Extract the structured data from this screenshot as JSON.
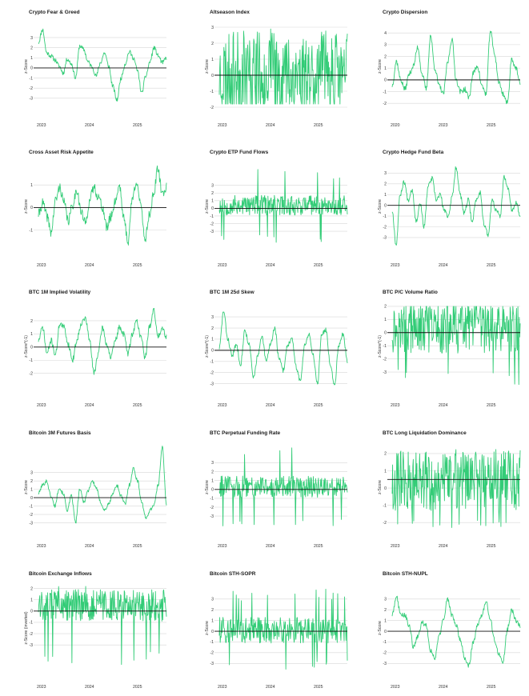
{
  "colors": {
    "line": "#33cc77",
    "zero": "#111111",
    "grid": "#d7d7d7",
    "text": "#333333"
  },
  "chart_data": [
    {
      "type": "line",
      "title": "Crypto Fear & Greed",
      "ylabel": "z-Score",
      "yticks": [
        -3,
        -2,
        -1,
        0,
        1,
        2,
        3
      ],
      "ylim": [
        -4.2,
        4.5
      ],
      "xlabels": [
        "2023",
        "2024",
        "2025"
      ],
      "seed": 11,
      "style": "trend",
      "anchors": [
        2.5,
        3.8,
        1.5,
        1.2,
        0.8,
        0.2,
        -0.5,
        0.9,
        0.4,
        -1.0,
        2.2,
        1.8,
        0.6,
        0.1,
        -0.8,
        0.5,
        1.5,
        0.2,
        -1.8,
        -3.2,
        -1.0,
        0.4,
        1.6,
        1.0,
        -0.3,
        -2.5,
        -0.8,
        0.6,
        2.0,
        1.2,
        0.5,
        1.0
      ]
    },
    {
      "type": "line",
      "title": "Altseason Index",
      "ylabel": "z-Score",
      "yticks": [
        -2,
        -1,
        0,
        1,
        2,
        3
      ],
      "ylim": [
        -2.2,
        3.3
      ],
      "xlabels": [
        "2023",
        "2024",
        "2025"
      ],
      "seed": 23,
      "style": "spiky",
      "base": 0.1,
      "amp": 2.6,
      "lo": -1.8,
      "hi": 2.9
    },
    {
      "type": "line",
      "title": "Crypto Dispersion",
      "ylabel": "z-Score",
      "yticks": [
        -2,
        -1,
        0,
        1,
        2,
        3,
        4
      ],
      "ylim": [
        -2.6,
        4.9
      ],
      "xlabels": [
        "2020",
        "2023",
        "2025"
      ],
      "seed": 37,
      "style": "trend",
      "anchors": [
        -0.5,
        1.6,
        0.0,
        -0.8,
        0.5,
        1.2,
        2.8,
        0.5,
        -0.8,
        3.8,
        1.0,
        -0.5,
        -1.2,
        1.5,
        3.5,
        0.0,
        -1.0,
        -0.8,
        -1.5,
        0.6,
        1.2,
        -0.5,
        -1.2,
        4.2,
        2.2,
        -0.2,
        -1.2,
        -2.0,
        1.8,
        1.0,
        -0.4
      ]
    },
    {
      "type": "line",
      "title": "Cross Asset Risk Appetite",
      "ylabel": "z-Score",
      "yticks": [
        -1,
        0,
        1
      ],
      "ylim": [
        -1.9,
        2.0
      ],
      "xlabels": [
        "2023",
        "2024",
        "2025"
      ],
      "seed": 41,
      "style": "trend",
      "anchors": [
        -0.3,
        0.2,
        -0.4,
        -1.1,
        0.3,
        0.9,
        0.2,
        -0.6,
        0.1,
        0.8,
        -0.2,
        -0.7,
        0.3,
        0.9,
        0.5,
        0.0,
        -0.9,
        -0.4,
        0.3,
        1.0,
        -0.5,
        -1.5,
        0.4,
        1.2,
        0.0,
        -1.4,
        -0.3,
        0.6,
        1.7,
        0.6,
        0.9
      ]
    },
    {
      "type": "line",
      "title": "Crypto ETP Fund Flows",
      "ylabel": "z-Score",
      "yticks": [
        -3,
        -2,
        -1,
        0,
        1,
        2,
        3
      ],
      "ylim": [
        -5.5,
        6.0
      ],
      "xlabels": [
        "2023",
        "2024",
        "2025"
      ],
      "seed": 53,
      "style": "spiky",
      "base": 0.4,
      "amp": 1.3,
      "lo": -4.5,
      "hi": 5.2
    },
    {
      "type": "line",
      "title": "Crypto Hedge Fund Beta",
      "ylabel": "z-Score",
      "yticks": [
        -3,
        -2,
        -1,
        0,
        1,
        2,
        3
      ],
      "ylim": [
        -4.2,
        4.0
      ],
      "xlabels": [
        "2023",
        "2024",
        "2025"
      ],
      "seed": 67,
      "style": "trend",
      "anchors": [
        -0.5,
        -3.7,
        1.0,
        2.2,
        0.5,
        1.5,
        -1.5,
        0.2,
        -2.0,
        1.8,
        2.5,
        0.5,
        1.0,
        -0.5,
        -1.0,
        0.8,
        3.6,
        1.0,
        -0.8,
        0.5,
        -1.5,
        0.5,
        1.2,
        -1.8,
        -2.8,
        0.5,
        -0.5,
        -1.0,
        2.6,
        1.5,
        -0.5,
        0.2,
        -1.0
      ]
    },
    {
      "type": "line",
      "title": "BTC 1M Implied Volatility",
      "ylabel": "z-Score*(-1)",
      "yticks": [
        -2,
        -1,
        0,
        1,
        2
      ],
      "ylim": [
        -3.3,
        3.4
      ],
      "xlabels": [
        "2023",
        "2024",
        "2025"
      ],
      "seed": 71,
      "style": "trend",
      "anchors": [
        0.5,
        1.5,
        -0.5,
        0.5,
        -0.6,
        1.8,
        1.5,
        0.2,
        -1.0,
        0.5,
        1.8,
        2.2,
        0.5,
        -2.0,
        -0.5,
        1.5,
        0.2,
        -0.8,
        0.5,
        1.5,
        1.0,
        -0.5,
        1.0,
        2.0,
        0.8,
        -0.8,
        1.5,
        2.8,
        0.8,
        1.5,
        0.8
      ]
    },
    {
      "type": "line",
      "title": "BTC 1M 25d Skew",
      "ylabel": "z-Score*(-1)",
      "yticks": [
        -3,
        -2,
        -1,
        0,
        1,
        2,
        3
      ],
      "ylim": [
        -3.6,
        4.3
      ],
      "xlabels": [
        "2023",
        "2024",
        "2025"
      ],
      "seed": 83,
      "style": "trend",
      "anchors": [
        0.2,
        3.5,
        1.0,
        -0.5,
        0.5,
        -1.2,
        1.8,
        0.5,
        -2.5,
        -0.5,
        1.2,
        -1.0,
        0.6,
        2.0,
        -0.8,
        -1.8,
        0.5,
        1.0,
        -1.5,
        -2.8,
        0.5,
        1.5,
        -0.5,
        -3.0,
        1.5,
        1.8,
        -1.2,
        -3.2,
        0.5,
        1.5,
        -1.0
      ]
    },
    {
      "type": "line",
      "title": "BTC P/C Volume Ratio",
      "ylabel": "z-Score*(-1)",
      "yticks": [
        -3,
        -2,
        -1,
        0,
        1,
        2
      ],
      "ylim": [
        -4.4,
        2.3
      ],
      "xlabels": [
        "2023",
        "2024",
        "2025"
      ],
      "seed": 97,
      "style": "spiky",
      "base": 0.3,
      "amp": 1.9,
      "lo": -4.0,
      "hi": 2.0
    },
    {
      "type": "line",
      "title": "Bitcoin 3M Futures Basis",
      "ylabel": "z-Score",
      "yticks": [
        -3,
        -2,
        -1,
        0,
        1,
        2,
        3
      ],
      "ylim": [
        -4.0,
        6.5
      ],
      "xlabels": [
        "2023",
        "2024",
        "2025"
      ],
      "seed": 101,
      "style": "trend",
      "anchors": [
        0.5,
        1.5,
        2.0,
        0.2,
        -1.0,
        1.2,
        0.5,
        -1.5,
        0.2,
        -3.0,
        1.0,
        -0.5,
        0.8,
        2.0,
        1.2,
        -0.5,
        -1.5,
        -0.8,
        0.5,
        1.5,
        0.2,
        -0.8,
        1.5,
        3.5,
        2.0,
        -0.5,
        -2.5,
        -1.5,
        -0.8,
        1.5,
        6.2,
        -1.0
      ]
    },
    {
      "type": "line",
      "title": "BTC Perpetual Funding Rate",
      "ylabel": "z-Score",
      "yticks": [
        -3,
        -2,
        -1,
        0,
        1,
        2,
        3
      ],
      "ylim": [
        -4.7,
        5.2
      ],
      "xlabels": [
        "2023",
        "2024",
        "2025"
      ],
      "seed": 113,
      "style": "spiky",
      "base": 0.3,
      "amp": 1.2,
      "lo": -4.3,
      "hi": 4.8
    },
    {
      "type": "line",
      "title": "BTC Long Liquidation Dominance",
      "ylabel": "z-Score",
      "yticks": [
        -2,
        -1,
        0,
        1,
        2
      ],
      "ylim": [
        -2.5,
        2.6
      ],
      "xlabels": [
        "2023",
        "2024",
        "2025"
      ],
      "seed": 127,
      "style": "dense",
      "base": 0.4,
      "amp": 1.7,
      "lo": -2.3,
      "hi": 2.3,
      "zero": 0.5
    },
    {
      "type": "line",
      "title": "Bitcoin Exchange Inflows",
      "ylabel": "z-Score (inverted)",
      "yticks": [
        -3,
        -2,
        -1,
        0,
        1,
        2
      ],
      "ylim": [
        -5.4,
        2.4
      ],
      "xlabels": [
        "2023",
        "2024",
        "2025"
      ],
      "seed": 131,
      "style": "spiky",
      "base": 0.5,
      "amp": 1.4,
      "lo": -5.0,
      "hi": 2.2
    },
    {
      "type": "line",
      "title": "Bitcoin STH-SOPR",
      "ylabel": "z-Score",
      "yticks": [
        -3,
        -2,
        -1,
        0,
        1,
        2,
        3
      ],
      "ylim": [
        -3.8,
        4.4
      ],
      "xlabels": [
        "2023",
        "2024",
        "2025"
      ],
      "seed": 139,
      "style": "spiky",
      "base": 0.1,
      "amp": 1.2,
      "lo": -3.6,
      "hi": 4.0
    },
    {
      "type": "line",
      "title": "Bitcoin STH-NUPL",
      "ylabel": "z-Score",
      "yticks": [
        -3,
        -2,
        -1,
        0,
        1,
        2,
        3
      ],
      "ylim": [
        -3.8,
        4.4
      ],
      "xlabels": [
        "2023",
        "2024",
        "2025"
      ],
      "seed": 149,
      "style": "trend",
      "anchors": [
        1.5,
        3.3,
        1.5,
        1.5,
        0.5,
        -1.5,
        -0.5,
        0.8,
        0.5,
        -1.8,
        -2.5,
        -0.5,
        1.2,
        3.0,
        1.5,
        0.5,
        -0.8,
        -2.5,
        -3.2,
        -1.0,
        0.5,
        1.5,
        2.8,
        1.0,
        -0.8,
        -2.2,
        -2.8,
        0.2,
        2.0,
        1.0,
        0.5
      ]
    }
  ]
}
